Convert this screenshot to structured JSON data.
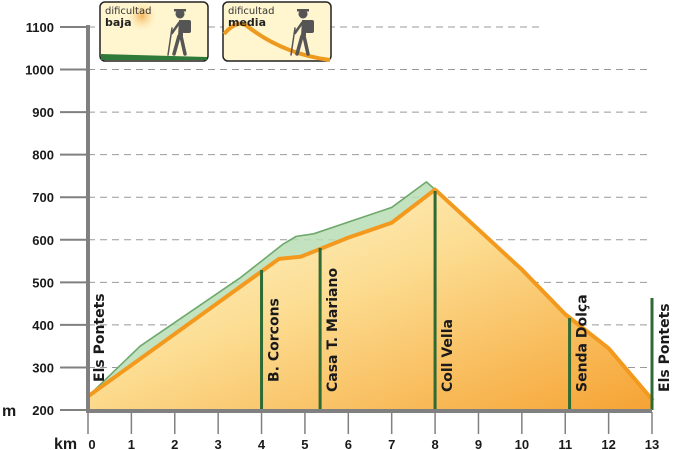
{
  "chart_data": {
    "type": "area",
    "title": "",
    "xlabel": "km",
    "ylabel": "m",
    "xlim": [
      0,
      13
    ],
    "ylim": [
      200,
      1100
    ],
    "x_ticks": [
      0,
      1,
      2,
      3,
      4,
      5,
      6,
      7,
      8,
      9,
      10,
      11,
      12,
      13
    ],
    "y_ticks": [
      200,
      300,
      400,
      500,
      600,
      700,
      800,
      900,
      1000,
      1100
    ],
    "grid": "horizontal-dashed",
    "series": [
      {
        "points": [
          [
            0,
            232
          ],
          [
            1.2,
            350
          ],
          [
            3.5,
            510
          ],
          [
            4.5,
            590
          ],
          [
            4.8,
            608
          ],
          [
            5.2,
            614
          ],
          [
            7,
            676
          ],
          [
            7.8,
            736
          ],
          [
            8,
            718
          ]
        ]
      },
      {
        "points": [
          [
            0,
            232
          ],
          [
            4.4,
            555
          ],
          [
            4.9,
            560
          ],
          [
            6,
            605
          ],
          [
            7,
            640
          ],
          [
            8,
            718
          ],
          [
            10,
            530
          ],
          [
            11,
            425
          ],
          [
            12,
            345
          ],
          [
            13,
            225
          ]
        ]
      }
    ],
    "waypoints": [
      {
        "km": 0,
        "label": "Els Pontets"
      },
      {
        "km": 4,
        "label": "B. Corcons"
      },
      {
        "km": 5.35,
        "label": "Casa T. Mariano"
      },
      {
        "km": 8,
        "label": "Coll Vella"
      },
      {
        "km": 11.1,
        "label": "Senda Dolça"
      },
      {
        "km": 13,
        "label": "Els Pontets"
      }
    ],
    "difficulty_badges": [
      {
        "top": "dificultad",
        "bottom": "baja",
        "icon": "hiker-icon"
      },
      {
        "top": "dificultad",
        "bottom": "media",
        "icon": "hiker-icon"
      }
    ],
    "colors": {
      "orange_line": "#F39A1E",
      "green_line": "#6FA86C",
      "green_fill": "#B9DDB5",
      "marker": "#2E6A34",
      "fill_light": "#FFF7D6",
      "fill_dark": "#F7A63A",
      "axis": "#808080",
      "grid": "#999999"
    }
  }
}
